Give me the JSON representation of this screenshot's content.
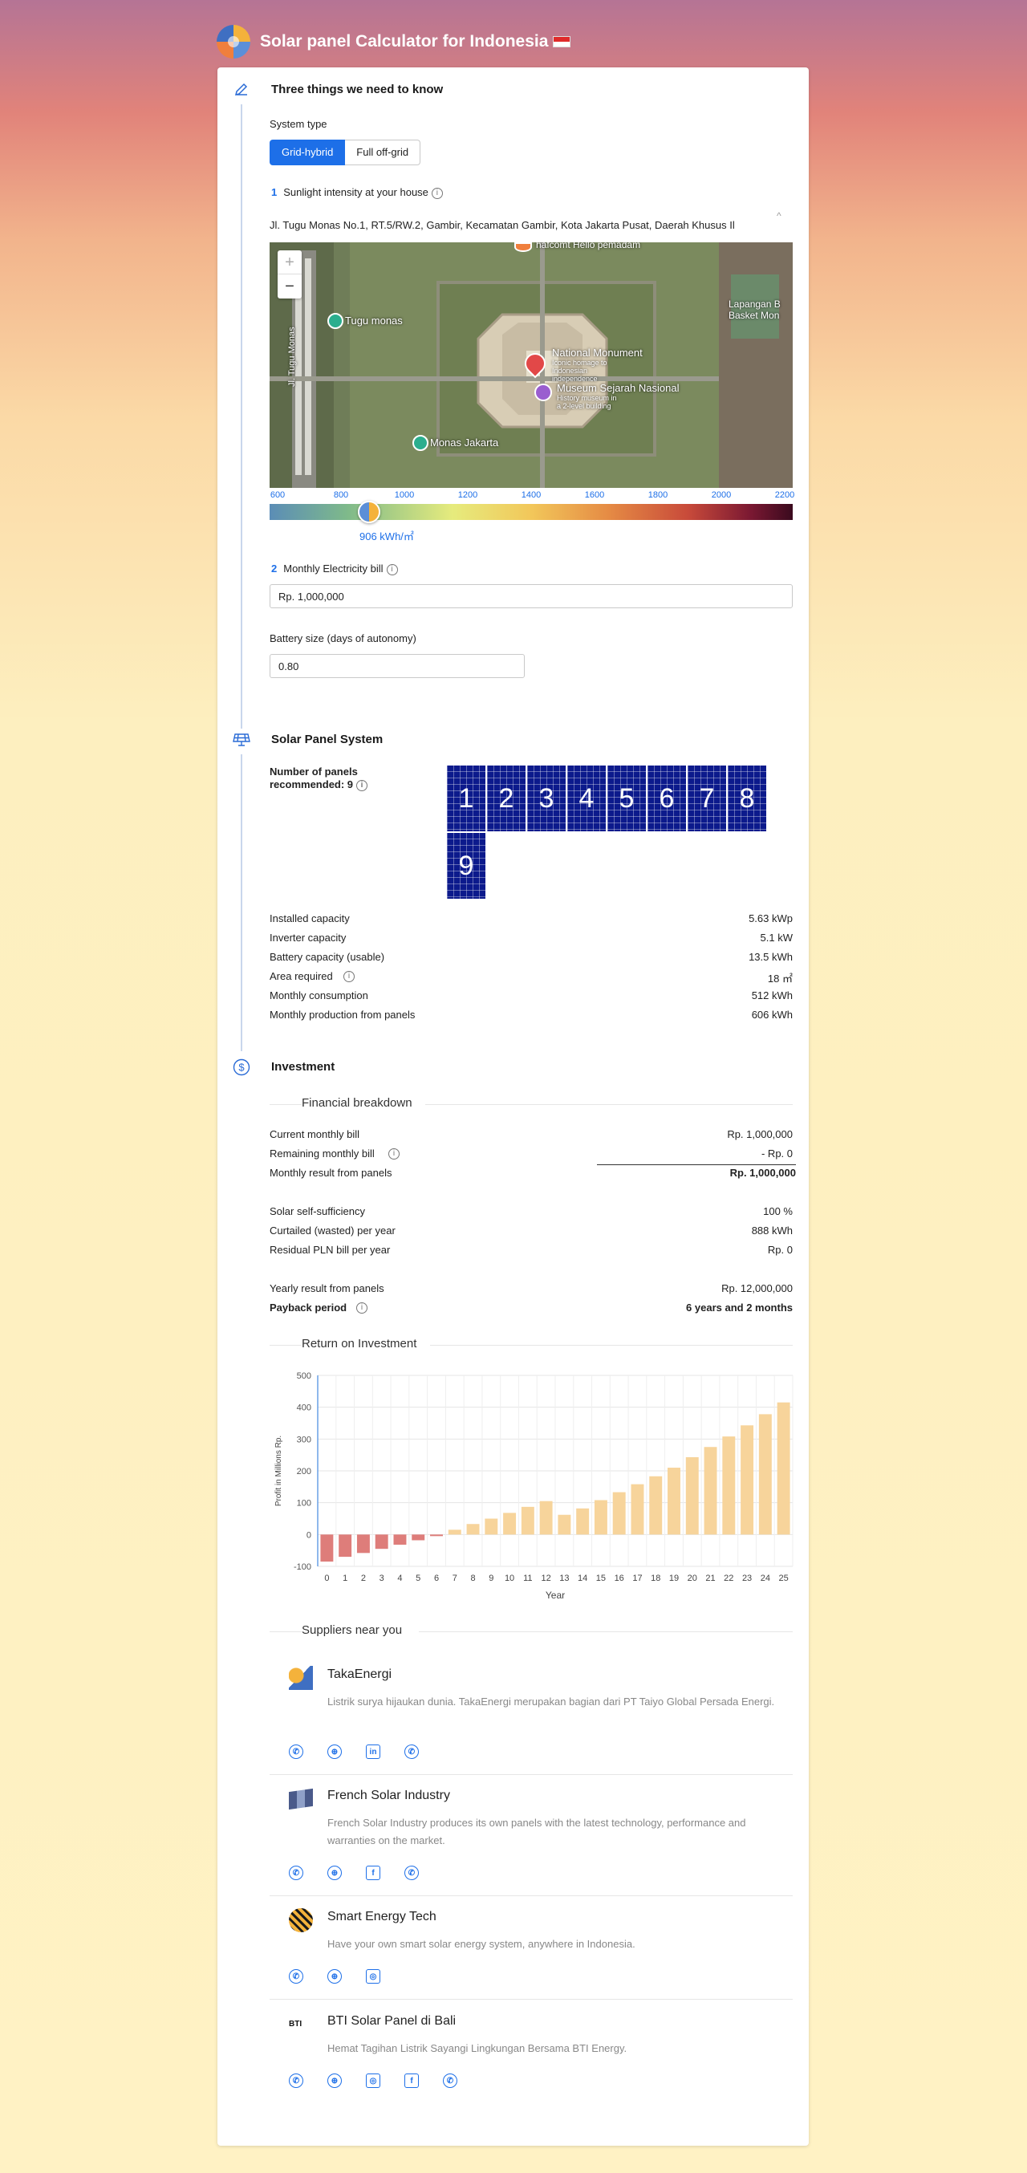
{
  "header": {
    "title": "Solar panel Calculator for Indonesia"
  },
  "know": {
    "title": "Three things we need to know",
    "system_type_label": "System type",
    "system_types": [
      "Grid-hybrid",
      "Full off-grid"
    ],
    "step1_num": "1",
    "step1_label": "Sunlight intensity at your house",
    "address": "Jl. Tugu Monas No.1, RT.5/RW.2, Gambir, Kecamatan Gambir, Kota Jakarta Pusat, Daerah Khusus Il",
    "map_labels": {
      "national_monument": "National Monument",
      "national_monument_sub": "Iconic homage to Indonesian independence",
      "museum": "Museum Sejarah Nasional",
      "museum_sub": "History museum in a 2-level building",
      "tugu_monas": "Tugu monas",
      "monas_jakarta": "Monas Jakarta",
      "lapangan": "Lapangan B Basket Mon",
      "street": "Jl. Tugu Monas",
      "top_poi": "hafcomt Hello pemadam"
    },
    "irradiance_ticks": [
      "600",
      "800",
      "1000",
      "1200",
      "1400",
      "1600",
      "1800",
      "2000",
      "2200"
    ],
    "irradiance_value": "906 kWh/㎡",
    "irradiance_fraction": 0.19,
    "step2_num": "2",
    "step2_label": "Monthly Electricity bill",
    "bill_value": "Rp. 1,000,000",
    "battery_label": "Battery size (days of autonomy)",
    "battery_value": "0.80"
  },
  "system": {
    "title": "Solar Panel System",
    "panels_label": "Number of panels recommended: 9",
    "panel_numbers": [
      "1",
      "2",
      "3",
      "4",
      "5",
      "6",
      "7",
      "8",
      "9"
    ],
    "stats": [
      {
        "label": "Installed capacity",
        "value": "5.63 kWp"
      },
      {
        "label": "Inverter capacity",
        "value": "5.1 kW"
      },
      {
        "label": "Battery capacity (usable)",
        "value": "13.5 kWh"
      },
      {
        "label": "Area required",
        "value": "18 ㎡"
      },
      {
        "label": "Monthly consumption",
        "value": "512 kWh"
      },
      {
        "label": "Monthly production from panels",
        "value": "606 kWh"
      }
    ]
  },
  "investment": {
    "title": "Investment",
    "breakdown_title": "Financial breakdown",
    "rows": [
      {
        "label": "Current monthly bill",
        "value": "Rp. 1,000,000"
      },
      {
        "label": "Remaining monthly bill",
        "value": "- Rp. 0"
      },
      {
        "label": "Monthly result from panels",
        "value": "Rp. 1,000,000"
      },
      {
        "label": "Solar self-sufficiency",
        "value": "100 %"
      },
      {
        "label": "Curtailed (wasted) per year",
        "value": "888 kWh"
      },
      {
        "label": "Residual PLN bill per year",
        "value": "Rp. 0"
      },
      {
        "label": "Yearly result from panels",
        "value": "Rp. 12,000,000"
      },
      {
        "label": "Payback period",
        "value": "6 years and 2 months"
      }
    ],
    "roi_title": "Return on Investment",
    "suppliers_title": "Suppliers near you"
  },
  "chart_data": {
    "type": "bar",
    "title": "Return on Investment",
    "xlabel": "Year",
    "ylabel": "Profit in Millions Rp.",
    "ylim": [
      -100,
      500
    ],
    "yticks": [
      "500",
      "400",
      "300",
      "200",
      "100",
      "0",
      "-100"
    ],
    "categories": [
      "0",
      "1",
      "2",
      "3",
      "4",
      "5",
      "6",
      "7",
      "8",
      "9",
      "10",
      "11",
      "12",
      "13",
      "14",
      "15",
      "16",
      "17",
      "18",
      "19",
      "20",
      "21",
      "22",
      "23",
      "24",
      "25"
    ],
    "values": [
      -85,
      -70,
      -58,
      -45,
      -32,
      -18,
      -5,
      15,
      33,
      50,
      68,
      87,
      105,
      62,
      82,
      108,
      133,
      158,
      183,
      210,
      243,
      275,
      308,
      343,
      378,
      415
    ],
    "colors": {
      "negative": "#de7d7a",
      "positive": "#f7d49b"
    },
    "grid": true
  },
  "suppliers": [
    {
      "name": "TakaEnergi",
      "desc": "Listrik surya hijaukan dunia. TakaEnergi merupakan bagian dari PT Taiyo Global Persada Energi.",
      "icons": [
        "phone-icon",
        "globe-icon",
        "linkedin-icon",
        "whatsapp-icon"
      ]
    },
    {
      "name": "French Solar Industry",
      "desc": "French Solar Industry produces its own panels with the latest technology, performance and warranties on the market.",
      "icons": [
        "phone-icon",
        "globe-icon",
        "facebook-icon",
        "whatsapp-icon"
      ]
    },
    {
      "name": "Smart Energy Tech",
      "desc": "Have your own smart solar energy system, anywhere in Indonesia.",
      "icons": [
        "phone-icon",
        "globe-icon",
        "instagram-icon"
      ]
    },
    {
      "name": "BTI Solar Panel di Bali",
      "logo_text": "BTI",
      "desc": "Hemat Tagihan Listrik Sayangi Lingkungan Bersama BTI Energy.",
      "icons": [
        "phone-icon",
        "globe-icon",
        "instagram-icon",
        "facebook-icon",
        "whatsapp-icon"
      ]
    }
  ],
  "colors": {
    "accent": "#1d6fe8",
    "panel": "#0c1a8c"
  }
}
